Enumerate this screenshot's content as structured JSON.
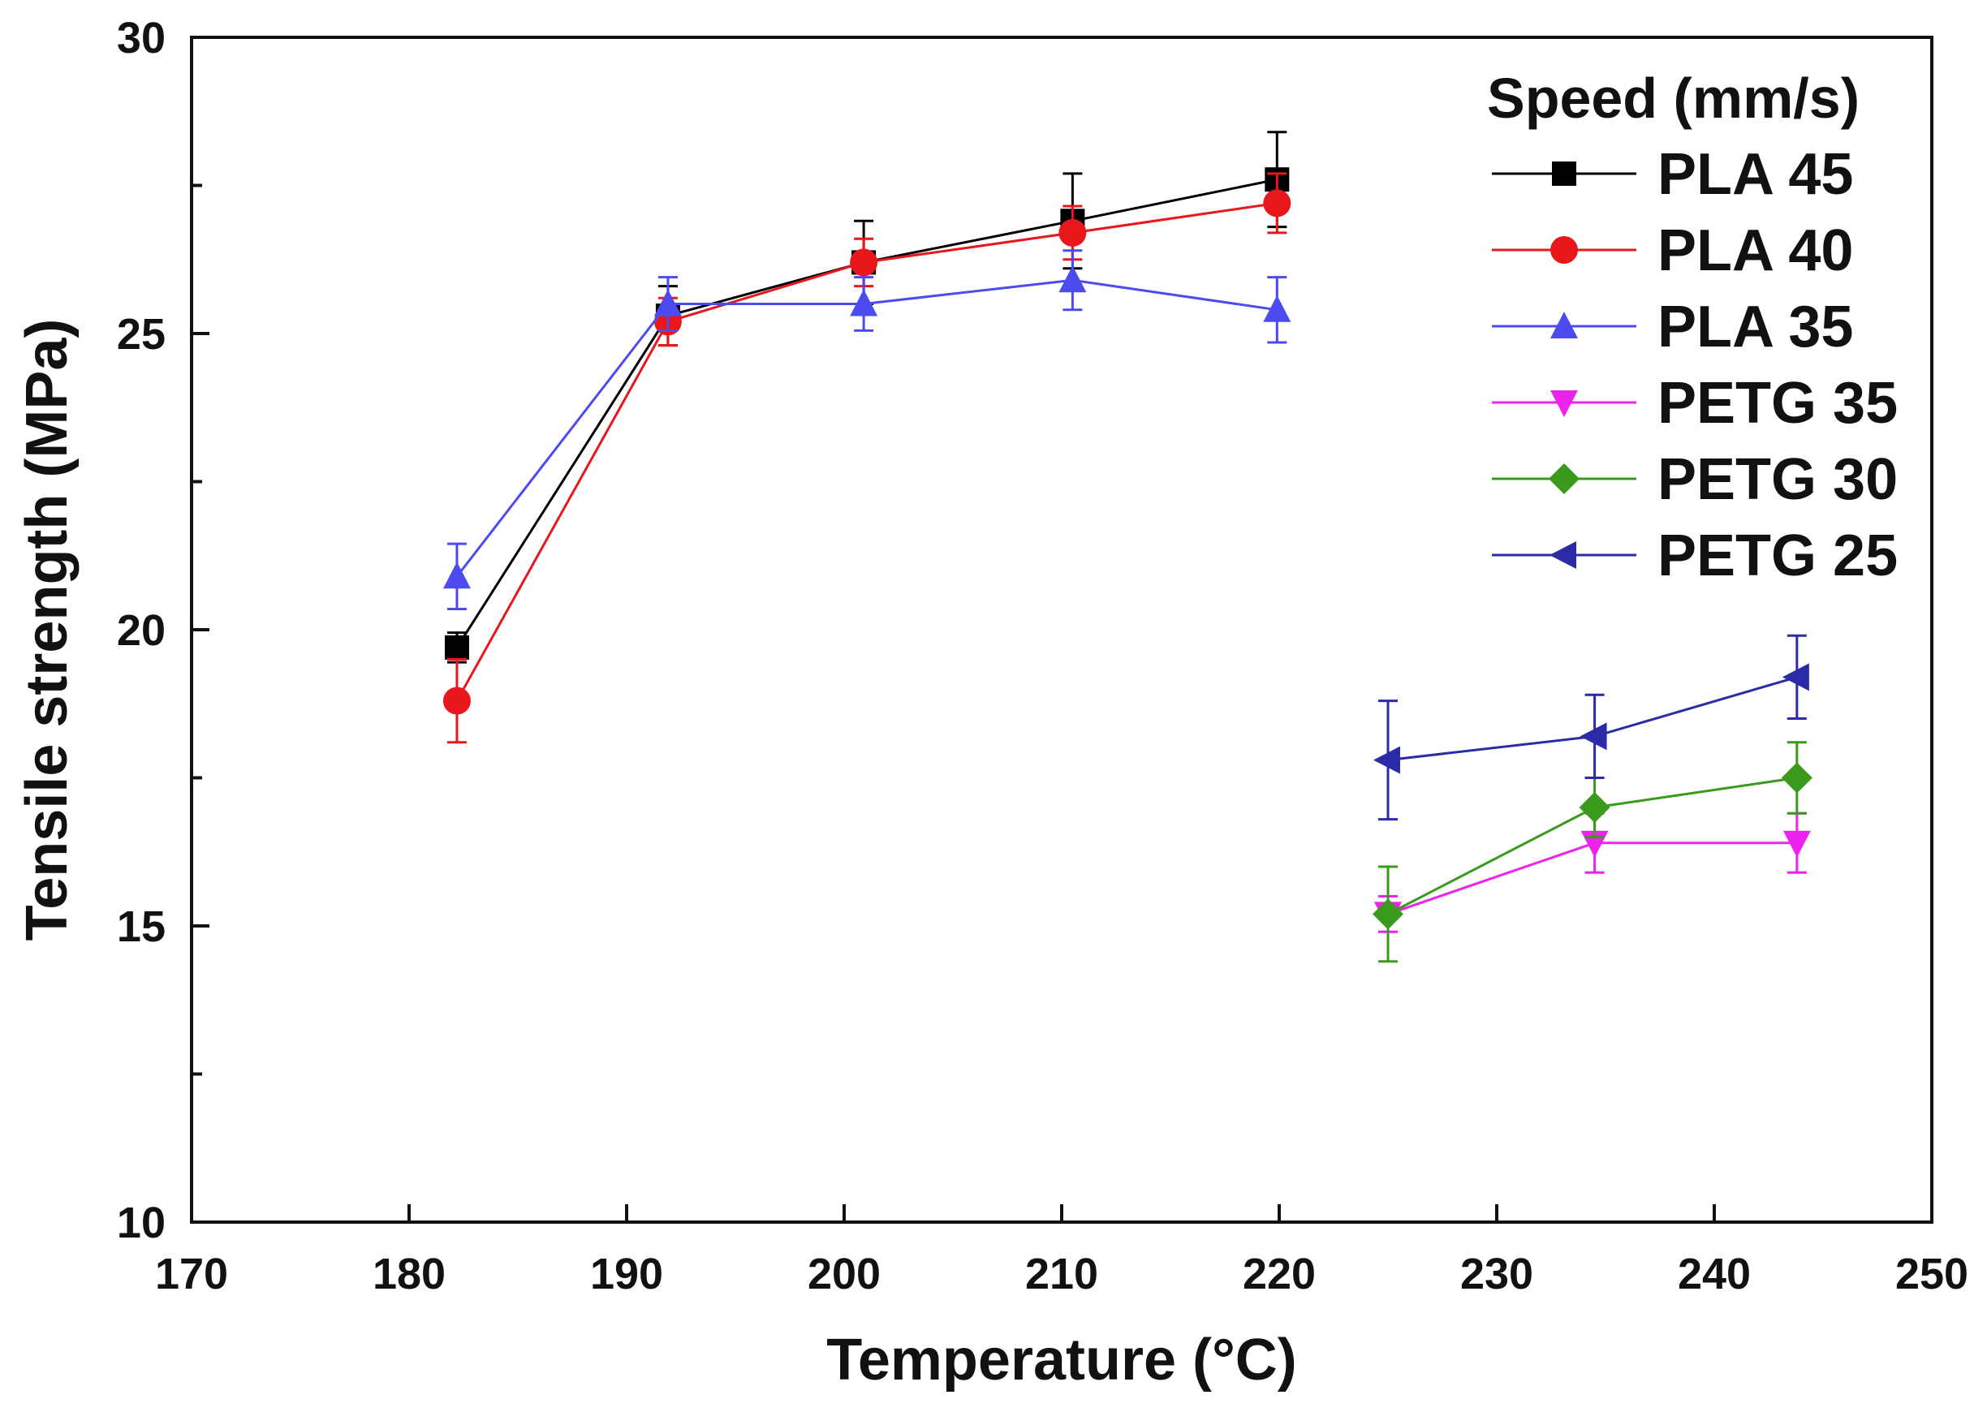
{
  "chart_data": {
    "type": "line",
    "title": "",
    "xlabel": "Temperature (°C)",
    "ylabel": "Tensile strength (MPa)",
    "xlim": [
      170,
      250
    ],
    "ylim": [
      10,
      30
    ],
    "xticks": [
      170,
      180,
      190,
      200,
      210,
      220,
      230,
      240,
      250
    ],
    "xtick_labels": [
      "170",
      "180",
      "190",
      "200",
      "210",
      "220",
      "230",
      "240",
      "250"
    ],
    "yticks": [
      10,
      15,
      20,
      25,
      30
    ],
    "ytick_labels": [
      "10",
      "15",
      "20",
      "25",
      "30"
    ],
    "yminor_ticks": [
      12.5,
      17.5,
      22.5,
      27.5
    ],
    "grid": false,
    "legend": {
      "title": "Speed (mm/s)",
      "position": "top-right"
    },
    "series": [
      {
        "name": "PLA 45",
        "color": "#000000",
        "marker": "square",
        "x": [
          182.2,
          191.9,
          200.9,
          210.5,
          219.9
        ],
        "y": [
          19.7,
          25.3,
          26.2,
          26.9,
          27.6
        ],
        "err": [
          0.25,
          0.5,
          0.7,
          0.8,
          0.8
        ]
      },
      {
        "name": "PLA 40",
        "color": "#e8171c",
        "marker": "circle",
        "x": [
          182.2,
          191.9,
          200.9,
          210.5,
          219.9
        ],
        "y": [
          18.8,
          25.2,
          26.2,
          26.7,
          27.2
        ],
        "err": [
          0.7,
          0.4,
          0.4,
          0.45,
          0.5
        ]
      },
      {
        "name": "PLA 35",
        "color": "#4b4bf0",
        "marker": "triangle-up",
        "x": [
          182.2,
          191.9,
          200.9,
          210.5,
          219.9
        ],
        "y": [
          20.9,
          25.5,
          25.5,
          25.9,
          25.4
        ],
        "err": [
          0.55,
          0.45,
          0.45,
          0.5,
          0.55
        ]
      },
      {
        "name": "PETG 35",
        "color": "#ee22ee",
        "marker": "triangle-down",
        "x": [
          225.0,
          234.5,
          243.8
        ],
        "y": [
          15.2,
          16.4,
          16.4
        ],
        "err": [
          0.3,
          0.5,
          0.5
        ]
      },
      {
        "name": "PETG 30",
        "color": "#3a9a1c",
        "marker": "diamond",
        "x": [
          225.0,
          234.5,
          243.8
        ],
        "y": [
          15.2,
          17.0,
          17.5
        ],
        "err": [
          0.8,
          0.5,
          0.6
        ]
      },
      {
        "name": "PETG 25",
        "color": "#2b2ba8",
        "marker": "triangle-left",
        "x": [
          225.0,
          234.5,
          243.8
        ],
        "y": [
          17.8,
          18.2,
          19.2
        ],
        "err": [
          1.0,
          0.7,
          0.7
        ]
      }
    ]
  }
}
